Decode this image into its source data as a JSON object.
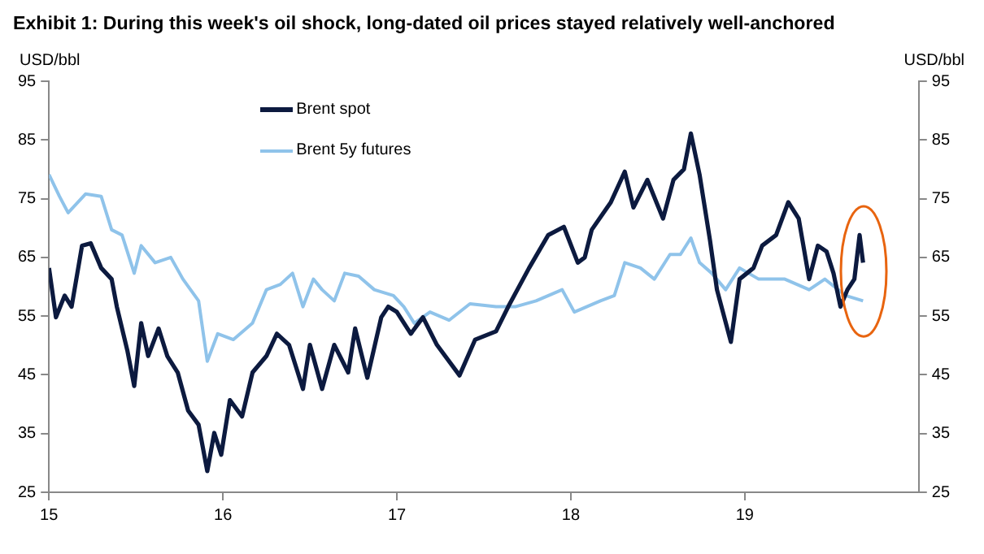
{
  "chart_data": {
    "type": "line",
    "title": "Exhibit 1: During this week's oil shock, long-dated oil prices stayed relatively well-anchored",
    "ylabel": "USD/bbl",
    "y2label": "USD/bbl",
    "xlim": [
      15,
      20
    ],
    "xticks": [
      15,
      16,
      17,
      18,
      19
    ],
    "ylim": [
      25,
      95
    ],
    "yticks": [
      25,
      35,
      45,
      55,
      65,
      75,
      85,
      95
    ],
    "y2lim": [
      25,
      95
    ],
    "y2ticks": [
      25,
      35,
      45,
      55,
      65,
      75,
      85,
      95
    ],
    "grid": false,
    "legend": "top left",
    "series": [
      {
        "name": "Brent spot",
        "color": "#0c1a3f",
        "x": [
          15.0,
          15.04,
          15.09,
          15.13,
          15.19,
          15.24,
          15.3,
          15.36,
          15.39,
          15.45,
          15.49,
          15.53,
          15.57,
          15.63,
          15.68,
          15.74,
          15.8,
          15.86,
          15.91,
          15.95,
          15.99,
          16.04,
          16.11,
          16.17,
          16.25,
          16.31,
          16.38,
          16.46,
          16.5,
          16.57,
          16.64,
          16.72,
          16.76,
          16.83,
          16.91,
          16.95,
          17.0,
          17.08,
          17.15,
          17.23,
          17.36,
          17.45,
          17.57,
          17.64,
          17.76,
          17.87,
          17.96,
          18.04,
          18.08,
          18.12,
          18.23,
          18.31,
          18.36,
          18.44,
          18.53,
          18.59,
          18.65,
          18.69,
          18.74,
          18.8,
          18.84,
          18.92,
          18.97,
          19.05,
          19.1,
          19.18,
          19.25,
          19.31,
          19.37,
          19.42,
          19.47,
          19.51,
          19.55,
          19.59,
          19.63,
          19.66,
          19.68
        ],
        "values": [
          63.2,
          54.8,
          58.5,
          56.6,
          67.0,
          67.4,
          63.2,
          61.3,
          56.6,
          49.2,
          43.1,
          53.8,
          48.2,
          52.9,
          48.2,
          45.4,
          38.9,
          36.5,
          28.6,
          35.1,
          31.4,
          40.7,
          37.9,
          45.4,
          48.2,
          52.0,
          50.1,
          42.6,
          50.1,
          42.6,
          50.1,
          45.4,
          52.9,
          44.5,
          54.8,
          56.6,
          55.7,
          52.0,
          54.8,
          50.1,
          44.9,
          51.0,
          52.4,
          56.6,
          63.2,
          68.8,
          70.2,
          64.1,
          65.0,
          69.7,
          74.4,
          79.6,
          73.5,
          78.2,
          71.6,
          78.2,
          80.0,
          86.1,
          79.1,
          67.9,
          59.5,
          50.6,
          61.3,
          63.2,
          67.0,
          68.8,
          74.4,
          71.6,
          61.3,
          67.0,
          66.0,
          62.3,
          56.6,
          59.5,
          61.3,
          68.8,
          64.1
        ]
      },
      {
        "name": "Brent 5y futures",
        "color": "#8fc3ea",
        "x": [
          15.0,
          15.06,
          15.11,
          15.21,
          15.3,
          15.36,
          15.42,
          15.49,
          15.53,
          15.61,
          15.7,
          15.77,
          15.86,
          15.91,
          15.97,
          16.06,
          16.17,
          16.25,
          16.33,
          16.4,
          16.46,
          16.52,
          16.57,
          16.64,
          16.7,
          16.78,
          16.87,
          16.98,
          17.04,
          17.1,
          17.19,
          17.3,
          17.42,
          17.57,
          17.68,
          17.8,
          17.95,
          18.02,
          18.17,
          18.25,
          18.31,
          18.4,
          18.48,
          18.57,
          18.63,
          18.69,
          18.74,
          18.81,
          18.89,
          18.97,
          19.08,
          19.23,
          19.37,
          19.46,
          19.58,
          19.68
        ],
        "values": [
          79.1,
          75.4,
          72.6,
          75.8,
          75.4,
          69.7,
          68.8,
          62.3,
          67.0,
          64.1,
          65.0,
          61.3,
          57.6,
          47.3,
          52.0,
          51.0,
          53.8,
          59.5,
          60.4,
          62.3,
          56.6,
          61.3,
          59.5,
          57.6,
          62.3,
          61.8,
          59.5,
          58.5,
          56.6,
          53.8,
          55.7,
          54.3,
          57.1,
          56.6,
          56.6,
          57.6,
          59.5,
          55.7,
          57.6,
          58.5,
          64.1,
          63.2,
          61.3,
          65.5,
          65.5,
          68.3,
          64.1,
          62.3,
          59.5,
          63.2,
          61.3,
          61.3,
          59.5,
          61.3,
          58.5,
          57.6
        ]
      }
    ]
  }
}
